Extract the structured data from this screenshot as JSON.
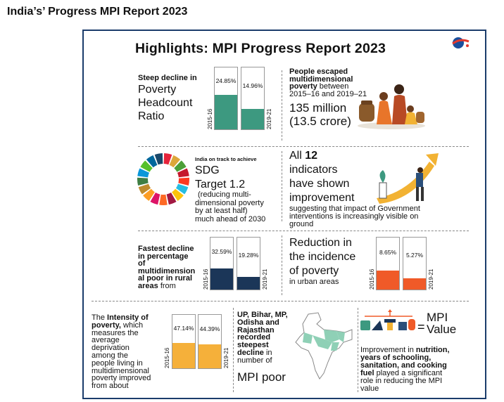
{
  "page_title": "India’s’ Progress MPI Report 2023",
  "highlights_title": "Highlights: MPI Progress Report 2023",
  "colors": {
    "green": "#3d9980",
    "navy": "#1b3658",
    "orange": "#f05a28",
    "amber": "#f5b03a",
    "frame": "#1b3c6b"
  },
  "headcount": {
    "heading": "Steep decline in",
    "text_lines": [
      "Poverty",
      "Headcount",
      "Ratio"
    ],
    "bars": [
      {
        "year": "2015-16",
        "value": 24.85,
        "label": "24.85%"
      },
      {
        "year": "2019-21",
        "value": 14.96,
        "label": "14.96%"
      }
    ]
  },
  "escaped": {
    "heading_lines": [
      "People escaped",
      "multidimensional"
    ],
    "heading_bold_end": "poverty",
    "heading_rest": " between",
    "years_line": "2015–16 and 2019–21",
    "number_lines": [
      "135 million",
      "(13.5 crore)"
    ]
  },
  "sdg": {
    "intro": "India on track to achieve",
    "title_lines": [
      "SDG",
      "Target 1.2"
    ],
    "detail_lines": [
      "(reducing multi-",
      "dimensional poverty",
      "by at least half)",
      "much ahead of 2030"
    ],
    "wheel_colors": [
      "#e5243b",
      "#dda63a",
      "#4c9f38",
      "#c5192d",
      "#ff3a21",
      "#26bde2",
      "#fcc30b",
      "#a21942",
      "#fd6925",
      "#dd1367",
      "#fd9d24",
      "#bf8b2e",
      "#3f7e44",
      "#0a97d9",
      "#56c02b",
      "#00689d",
      "#19486a"
    ]
  },
  "indicators": {
    "line1_pre": "All ",
    "line1_bold": "12",
    "text_lines": [
      "indicators",
      "have shown",
      "improvement"
    ],
    "detail_lines": [
      "suggesting that impact of Government",
      "interventions is increasingly visible on",
      "ground"
    ]
  },
  "rural": {
    "heading_lines": [
      "Fastest decline",
      "in percentage",
      "of",
      "multidimension",
      "al poor in rural",
      "areas"
    ],
    "tail": " from",
    "bars": [
      {
        "year": "2015-16",
        "value": 32.59,
        "label": "32.59%"
      },
      {
        "year": "2019-21",
        "value": 19.28,
        "label": "19.28%"
      }
    ]
  },
  "urban": {
    "text_lines": [
      "Reduction in",
      "the incidence",
      "of poverty"
    ],
    "sub": "in urban areas",
    "bars": [
      {
        "year": "2015-16",
        "value": 8.65,
        "label": "8.65%"
      },
      {
        "year": "2019-21",
        "value": 5.27,
        "label": "5.27%"
      }
    ]
  },
  "intensity": {
    "pre": "The ",
    "bold_lines": [
      "Intensity of",
      "poverty,"
    ],
    "after_bold": " which",
    "text_lines": [
      "measures the",
      "average",
      "deprivation",
      "among the",
      "people living in",
      "multidimensional",
      "poverty improved",
      "from about"
    ],
    "bars": [
      {
        "year": "2015-16",
        "value": 47.14,
        "label": "47.14%"
      },
      {
        "year": "2019-21",
        "value": 44.39,
        "label": "44.39%"
      }
    ]
  },
  "states": {
    "bold_lines": [
      "UP, Bihar, MP,",
      "Odisha and",
      "Rajasthan",
      "recorded",
      "steepest",
      "decline"
    ],
    "tail": " in",
    "text_lines": [
      "number of"
    ],
    "big": "MPI poor"
  },
  "mpi_value": {
    "eq": "=",
    "label_lines": [
      "MPI",
      "Value"
    ],
    "desc_pre": "Improvement in ",
    "desc_bold_lines": [
      "nutrition,",
      "years of schooling,",
      "sanitation, and cooking",
      "fuel"
    ],
    "desc_rest_lines": [
      " played a significant",
      "role in reducing the MPI",
      "value"
    ]
  }
}
